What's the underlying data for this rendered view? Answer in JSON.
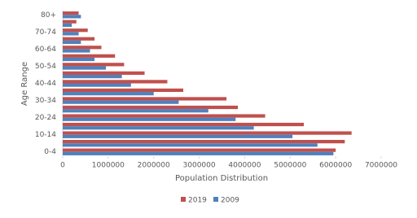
{
  "chart_data": {
    "type": "hbar",
    "x_label": "Population  Distribution",
    "y_label": "Age Range",
    "categories": [
      "0-4",
      null,
      "10-14",
      null,
      "20-24",
      null,
      "30-34",
      null,
      "40-44",
      null,
      "50-54",
      null,
      "60-64",
      null,
      "70-74",
      null,
      "80+"
    ],
    "series": [
      {
        "name": "2019",
        "color": "#c0504d",
        "values": [
          6000000,
          6200000,
          6350000,
          5300000,
          4450000,
          3850000,
          3600000,
          2650000,
          2300000,
          1800000,
          1350000,
          1150000,
          850000,
          700000,
          550000,
          300000,
          350000
        ]
      },
      {
        "name": "2009",
        "color": "#4f81bd",
        "values": [
          5950000,
          5600000,
          5050000,
          4200000,
          3800000,
          3200000,
          2550000,
          2000000,
          1500000,
          1300000,
          950000,
          700000,
          600000,
          400000,
          350000,
          200000,
          400000
        ]
      }
    ],
    "xlim": [
      0,
      7000000
    ],
    "xticks": [
      0,
      1000000,
      2000000,
      3000000,
      4000000,
      5000000,
      6000000,
      7000000
    ],
    "legend": "bottom"
  }
}
